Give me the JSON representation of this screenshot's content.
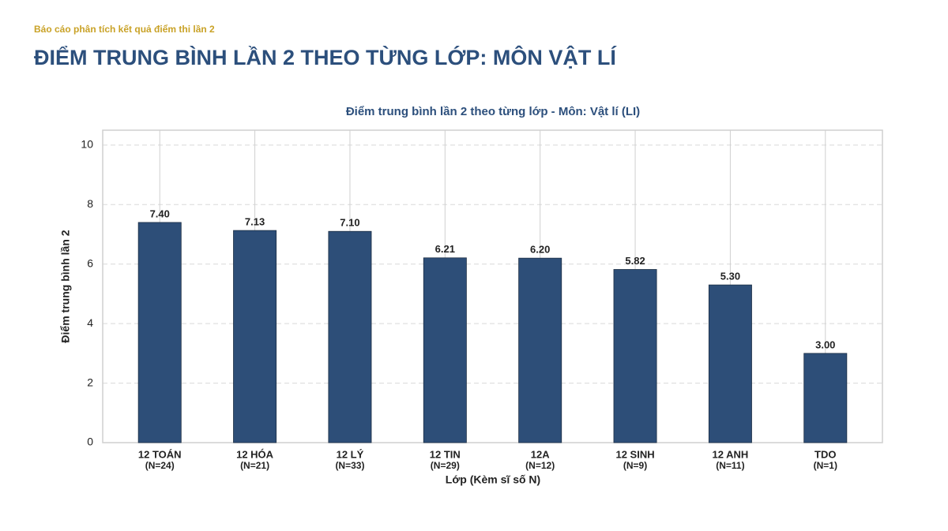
{
  "header": {
    "subtitle": "Báo cáo phân tích kết quả điểm thi lần 2",
    "title": "ĐIỂM TRUNG BÌNH LẦN 2 THEO TỪNG LỚP: MÔN VẬT LÍ"
  },
  "chart_data": {
    "type": "bar",
    "title": "Điểm trung bình lần 2 theo từng lớp - Môn: Vật lí (LI)",
    "categories": [
      "12 TOÁN",
      "12 HÓA",
      "12 LÝ",
      "12 TIN",
      "12A",
      "12 SINH",
      "12 ANH",
      "TDO"
    ],
    "category_notes": [
      "(N=24)",
      "(N=21)",
      "(N=33)",
      "(N=29)",
      "(N=12)",
      "(N=9)",
      "(N=11)",
      "(N=1)"
    ],
    "values": [
      7.4,
      7.13,
      7.1,
      6.21,
      6.2,
      5.82,
      5.3,
      3.0
    ],
    "value_labels": [
      "7.40",
      "7.13",
      "7.10",
      "6.21",
      "6.20",
      "5.82",
      "5.30",
      "3.00"
    ],
    "color": "#2d4e78",
    "x_label": "Lớp (Kèm sĩ số N)",
    "y_label": "Điểm trung bình lần 2",
    "ylim": [
      0,
      10.5
    ],
    "yticks": [
      0,
      2,
      4,
      6,
      8,
      10
    ],
    "grid": true
  }
}
